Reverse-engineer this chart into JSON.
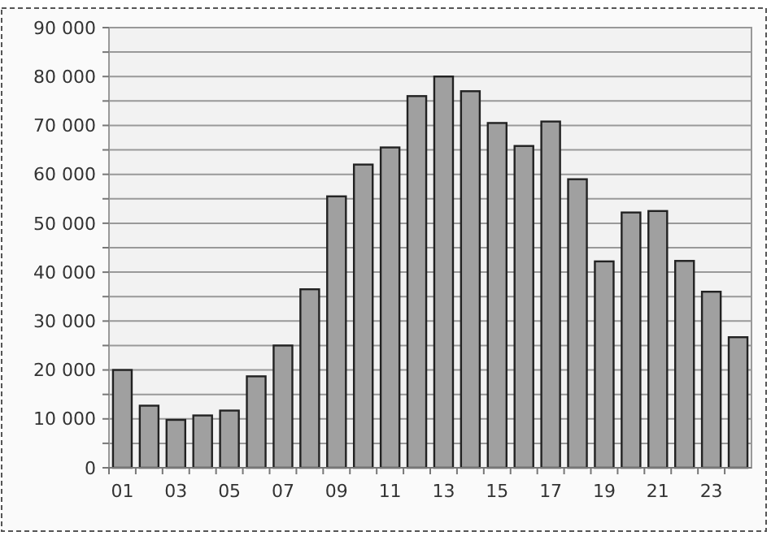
{
  "chart_data": {
    "type": "bar",
    "categories": [
      "01",
      null,
      "03",
      null,
      "05",
      null,
      "07",
      null,
      "09",
      null,
      "11",
      null,
      "13",
      null,
      "15",
      null,
      "17",
      null,
      "19",
      null,
      "21",
      null,
      "23",
      null
    ],
    "values": [
      20000,
      12700,
      9800,
      10700,
      11700,
      18700,
      25000,
      36500,
      55500,
      62000,
      65500,
      76000,
      80000,
      77000,
      70500,
      65800,
      70800,
      59000,
      42200,
      52200,
      52500,
      42300,
      36000,
      26700
    ],
    "color": "#a0a0a0",
    "ylim": [
      0,
      90000
    ],
    "yticks": [
      {
        "value": 0,
        "label": "0"
      },
      {
        "value": 5000,
        "label": null
      },
      {
        "value": 10000,
        "label": "10 000"
      },
      {
        "value": 15000,
        "label": null
      },
      {
        "value": 20000,
        "label": "20 000"
      },
      {
        "value": 25000,
        "label": null
      },
      {
        "value": 30000,
        "label": "30 000"
      },
      {
        "value": 35000,
        "label": null
      },
      {
        "value": 40000,
        "label": "40 000"
      },
      {
        "value": 45000,
        "label": null
      },
      {
        "value": 50000,
        "label": "50 000"
      },
      {
        "value": 55000,
        "label": null
      },
      {
        "value": 60000,
        "label": "60 000"
      },
      {
        "value": 65000,
        "label": null
      },
      {
        "value": 70000,
        "label": "70 000"
      },
      {
        "value": 75000,
        "label": null
      },
      {
        "value": 80000,
        "label": "80 000"
      },
      {
        "value": 85000,
        "label": null
      },
      {
        "value": 90000,
        "label": "90 000"
      }
    ],
    "grid": true
  }
}
